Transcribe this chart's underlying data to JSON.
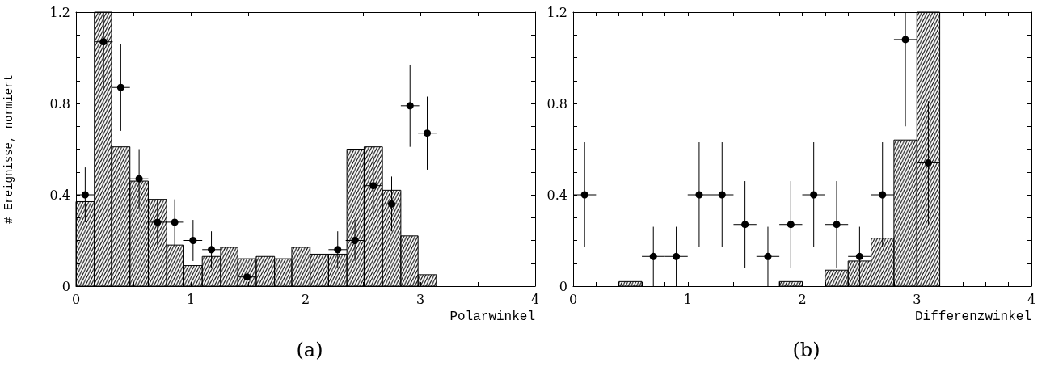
{
  "chart_data": [
    {
      "type": "histogram",
      "title": "(a)",
      "xlabel": "Polarwinkel",
      "ylabel": "# Ereignisse, normiert",
      "marker": "circle",
      "xlim": [
        0,
        4
      ],
      "xticks": [
        0,
        {
          "value": 0.5,
          "label": null
        },
        1,
        {
          "value": 1.5,
          "label": null
        },
        2,
        {
          "value": 2.5,
          "label": null
        },
        3,
        {
          "value": 3.5,
          "label": null
        },
        4
      ],
      "ylim": [
        0,
        1.2
      ],
      "yticks": [
        0,
        {
          "value": 0.1,
          "label": null
        },
        {
          "value": 0.2,
          "label": null
        },
        {
          "value": 0.3,
          "label": null
        },
        0.4,
        {
          "value": 0.5,
          "label": null
        },
        {
          "value": 0.6,
          "label": null
        },
        {
          "value": 0.7,
          "label": null
        },
        0.8,
        {
          "value": 0.9,
          "label": null
        },
        {
          "value": 1.0,
          "label": null
        },
        {
          "value": 1.1,
          "label": null
        },
        1.2
      ],
      "series": [
        {
          "color": "#000000",
          "bins": [
            0,
            0.16,
            0.31,
            0.47,
            0.63,
            0.79,
            0.94,
            1.1,
            1.26,
            1.41,
            1.57,
            1.73,
            1.88,
            2.04,
            2.2,
            2.36,
            2.51,
            2.67,
            2.83,
            2.98,
            3.14
          ],
          "values": [
            0.37,
            1.2,
            0.61,
            0.46,
            0.38,
            0.18,
            0.09,
            0.13,
            0.17,
            0.12,
            0.13,
            0.12,
            0.17,
            0.14,
            0.14,
            0.6,
            0.61,
            0.42,
            0.22,
            0.05
          ]
        },
        {
          "type": "scatter",
          "color": "#000000",
          "x": [
            0.08,
            0.24,
            0.39,
            0.55,
            0.71,
            0.86,
            1.02,
            1.18,
            1.49,
            2.28,
            2.43,
            2.59,
            2.75,
            2.91,
            3.06
          ],
          "values": [
            0.4,
            1.07,
            0.87,
            0.47,
            0.28,
            0.28,
            0.2,
            0.16,
            0.04,
            0.16,
            0.2,
            0.44,
            0.36,
            0.79,
            0.67
          ],
          "errors": [
            0.12,
            [
              0.86,
              1.2
            ],
            0.19,
            0.13,
            0.1,
            0.1,
            0.09,
            0.08,
            0.04,
            0.08,
            0.09,
            0.13,
            0.12,
            0.18,
            0.16
          ],
          "xerrors": [
            0.08,
            0.08,
            0.08,
            0.08,
            0.08,
            0.08,
            0.08,
            0.08,
            0.08,
            0.08,
            0.08,
            0.08,
            0.08,
            0.08,
            0.08
          ]
        }
      ]
    },
    {
      "type": "histogram",
      "title": "(b)",
      "xlabel": "Differenzwinkel",
      "marker": "circle",
      "xlim": [
        0,
        4
      ],
      "xticks": [
        0,
        {
          "value": 0.2,
          "label": null
        },
        {
          "value": 0.4,
          "label": null
        },
        {
          "value": 0.6,
          "label": null
        },
        {
          "value": 0.8,
          "label": null
        },
        1,
        {
          "value": 1.2,
          "label": null
        },
        {
          "value": 1.4,
          "label": null
        },
        {
          "value": 1.6,
          "label": null
        },
        {
          "value": 1.8,
          "label": null
        },
        2,
        {
          "value": 2.2,
          "label": null
        },
        {
          "value": 2.4,
          "label": null
        },
        {
          "value": 2.6,
          "label": null
        },
        {
          "value": 2.8,
          "label": null
        },
        3,
        {
          "value": 3.2,
          "label": null
        },
        {
          "value": 3.4,
          "label": null
        },
        {
          "value": 3.6,
          "label": null
        },
        {
          "value": 3.8,
          "label": null
        },
        4
      ],
      "ylim": [
        0,
        1.2
      ],
      "yticks": [
        0,
        {
          "value": 0.1,
          "label": null
        },
        {
          "value": 0.2,
          "label": null
        },
        {
          "value": 0.3,
          "label": null
        },
        0.4,
        {
          "value": 0.5,
          "label": null
        },
        {
          "value": 0.6,
          "label": null
        },
        {
          "value": 0.7,
          "label": null
        },
        0.8,
        {
          "value": 0.9,
          "label": null
        },
        {
          "value": 1.0,
          "label": null
        },
        {
          "value": 1.1,
          "label": null
        },
        1.2
      ],
      "series": [
        {
          "color": "#000000",
          "bins": [
            0,
            0.2,
            0.4,
            0.6,
            0.8,
            1,
            1.2,
            1.4,
            1.6,
            1.8,
            2,
            2.2,
            2.4,
            2.6,
            2.8,
            3,
            3.2
          ],
          "values": [
            0,
            0,
            0.02,
            0,
            0,
            0,
            0,
            0,
            0,
            0.02,
            0,
            0.07,
            0.11,
            0.21,
            0.64,
            1.2
          ]
        },
        {
          "type": "scatter",
          "color": "#000000",
          "x": [
            0.1,
            0.7,
            0.9,
            1.1,
            1.3,
            1.5,
            1.7,
            1.9,
            2.1,
            2.3,
            2.5,
            2.7,
            2.9,
            3.1
          ],
          "values": [
            0.4,
            0.13,
            0.13,
            0.4,
            0.4,
            0.27,
            0.13,
            0.27,
            0.4,
            0.27,
            0.13,
            0.4,
            1.08,
            0.54
          ],
          "errors": [
            0.23,
            0.13,
            0.13,
            0.23,
            0.23,
            0.19,
            0.13,
            0.19,
            0.23,
            0.19,
            0.13,
            0.23,
            [
              0.7,
              1.2
            ],
            0.27
          ],
          "xerrors": [
            0.1,
            0.1,
            0.1,
            0.1,
            0.1,
            0.1,
            0.1,
            0.1,
            0.1,
            0.1,
            0.1,
            0.1,
            0.1,
            0.1
          ]
        }
      ]
    }
  ]
}
